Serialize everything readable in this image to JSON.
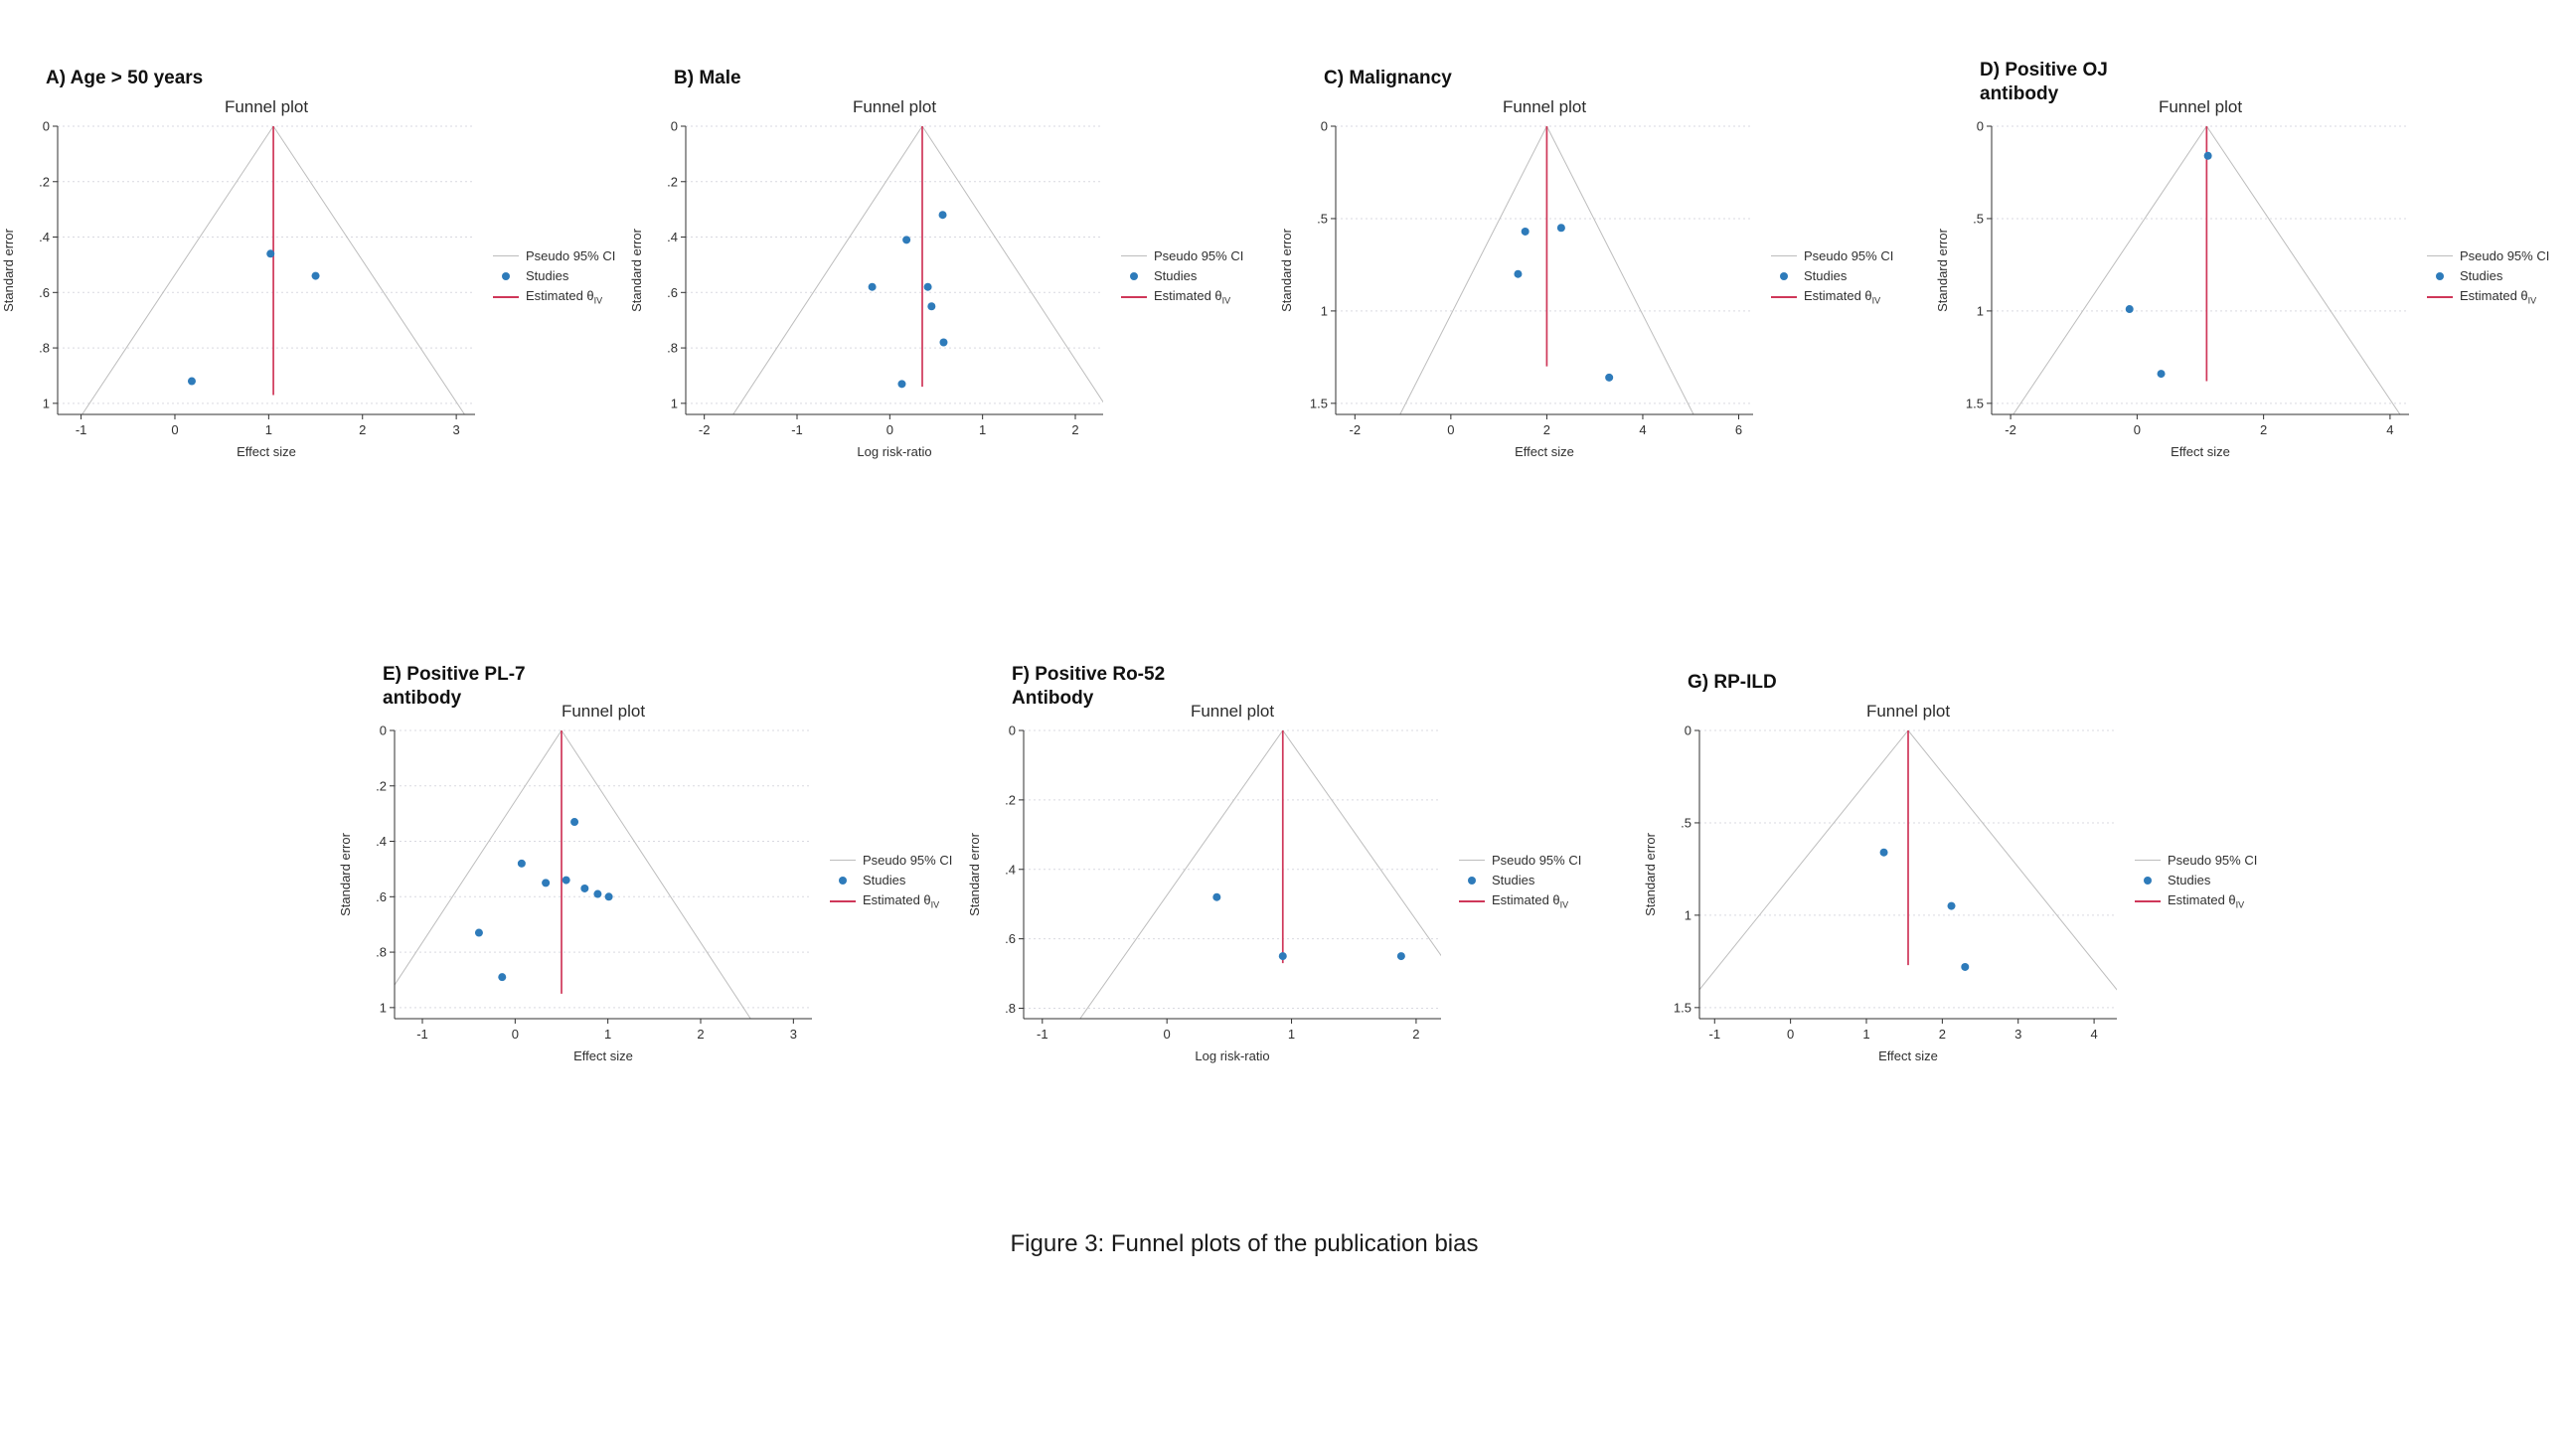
{
  "figure": {
    "caption": "Figure 3: Funnel plots of the publication bias"
  },
  "legend": {
    "pseudo_ci": "Pseudo 95% CI",
    "studies": "Studies",
    "estimated_prefix": "Estimated θ",
    "estimated_sub": "IV"
  },
  "colors": {
    "study_point": "#2e7bba",
    "estimate_line": "#cf3759",
    "ci_line": "#bdbdbd",
    "gridline": "#d9d9e0",
    "axis": "#303030",
    "text": "#303030",
    "title": "#2b2b2b"
  },
  "chart_data": [
    {
      "panel": "A",
      "panel_label": "A) Age > 50 years",
      "title": "Funnel plot",
      "type": "scatter",
      "subtype": "funnel",
      "xlabel": "Effect size",
      "ylabel": "Standard error",
      "xlim": [
        -1.25,
        3.2
      ],
      "xticks": [
        -1,
        0,
        1,
        2,
        3
      ],
      "ylim": [
        0,
        1.04
      ],
      "yticks": [
        0,
        0.2,
        0.4,
        0.6,
        0.8,
        1
      ],
      "ytick_labels": [
        "0",
        ".2",
        ".4",
        ".6",
        ".8",
        "1"
      ],
      "estimate": 1.05,
      "estimate_line_bottom": 0.97,
      "ci_slope": 1.96,
      "points": [
        [
          1.02,
          0.46
        ],
        [
          1.5,
          0.54
        ],
        [
          0.18,
          0.92
        ]
      ]
    },
    {
      "panel": "B",
      "panel_label": "B) Male",
      "title": "Funnel plot",
      "type": "scatter",
      "subtype": "funnel",
      "xlabel": "Log risk-ratio",
      "ylabel": "Standard error",
      "xlim": [
        -2.2,
        2.3
      ],
      "xticks": [
        -2,
        -1,
        0,
        1,
        2
      ],
      "ylim": [
        0,
        1.04
      ],
      "yticks": [
        0,
        0.2,
        0.4,
        0.6,
        0.8,
        1
      ],
      "ytick_labels": [
        "0",
        ".2",
        ".4",
        ".6",
        ".8",
        "1"
      ],
      "estimate": 0.35,
      "estimate_line_bottom": 0.94,
      "ci_slope": 1.96,
      "points": [
        [
          0.57,
          0.32
        ],
        [
          0.18,
          0.41
        ],
        [
          -0.19,
          0.58
        ],
        [
          0.41,
          0.58
        ],
        [
          0.45,
          0.65
        ],
        [
          0.58,
          0.78
        ],
        [
          0.13,
          0.93
        ]
      ]
    },
    {
      "panel": "C",
      "panel_label": "C) Malignancy",
      "title": "Funnel plot",
      "type": "scatter",
      "subtype": "funnel",
      "xlabel": "Effect size",
      "ylabel": "Standard error",
      "xlim": [
        -2.4,
        6.3
      ],
      "xticks": [
        -2,
        0,
        2,
        4,
        6
      ],
      "ylim": [
        0,
        1.56
      ],
      "yticks": [
        0,
        0.5,
        1,
        1.5
      ],
      "ytick_labels": [
        "0",
        ".5",
        "1",
        "1.5"
      ],
      "estimate": 2.0,
      "estimate_line_bottom": 1.3,
      "ci_slope": 1.96,
      "points": [
        [
          1.55,
          0.57
        ],
        [
          2.3,
          0.55
        ],
        [
          1.4,
          0.8
        ],
        [
          3.3,
          1.36
        ]
      ]
    },
    {
      "panel": "D",
      "panel_label": "D) Positive OJ\nantibody",
      "title": "Funnel plot",
      "type": "scatter",
      "subtype": "funnel",
      "xlabel": "Effect size",
      "ylabel": "Standard error",
      "xlim": [
        -2.3,
        4.3
      ],
      "xticks": [
        -2,
        0,
        2,
        4
      ],
      "ylim": [
        0,
        1.56
      ],
      "yticks": [
        0,
        0.5,
        1,
        1.5
      ],
      "ytick_labels": [
        "0",
        ".5",
        "1",
        "1.5"
      ],
      "estimate": 1.1,
      "estimate_line_bottom": 1.38,
      "ci_slope": 1.96,
      "points": [
        [
          1.12,
          0.16
        ],
        [
          -0.12,
          0.99
        ],
        [
          0.38,
          1.34
        ]
      ]
    },
    {
      "panel": "E",
      "panel_label": "E) Positive PL-7\nantibody",
      "title": "Funnel plot",
      "type": "scatter",
      "subtype": "funnel",
      "xlabel": "Effect size",
      "ylabel": "Standard error",
      "xlim": [
        -1.3,
        3.2
      ],
      "xticks": [
        -1,
        0,
        1,
        2,
        3
      ],
      "ylim": [
        0,
        1.04
      ],
      "yticks": [
        0,
        0.2,
        0.4,
        0.6,
        0.8,
        1
      ],
      "ytick_labels": [
        "0",
        ".2",
        ".4",
        ".6",
        ".8",
        "1"
      ],
      "estimate": 0.5,
      "estimate_line_bottom": 0.95,
      "ci_slope": 1.96,
      "points": [
        [
          0.64,
          0.33
        ],
        [
          0.07,
          0.48
        ],
        [
          0.33,
          0.55
        ],
        [
          0.55,
          0.54
        ],
        [
          0.75,
          0.57
        ],
        [
          0.89,
          0.59
        ],
        [
          1.01,
          0.6
        ],
        [
          -0.39,
          0.73
        ],
        [
          -0.14,
          0.89
        ]
      ]
    },
    {
      "panel": "F",
      "panel_label": "F) Positive Ro-52\nAntibody",
      "title": "Funnel plot",
      "type": "scatter",
      "subtype": "funnel",
      "xlabel": "Log risk-ratio",
      "ylabel": "Standard error",
      "xlim": [
        -1.15,
        2.2
      ],
      "xticks": [
        -1,
        0,
        1,
        2
      ],
      "ylim": [
        0,
        0.83
      ],
      "yticks": [
        0,
        0.2,
        0.4,
        0.6,
        0.8
      ],
      "ytick_labels": [
        "0",
        ".2",
        ".4",
        ".6",
        ".8"
      ],
      "estimate": 0.93,
      "estimate_line_bottom": 0.67,
      "ci_slope": 1.96,
      "points": [
        [
          0.4,
          0.48
        ],
        [
          0.93,
          0.65
        ],
        [
          1.88,
          0.65
        ]
      ]
    },
    {
      "panel": "G",
      "panel_label": "G) RP-ILD",
      "title": "Funnel plot",
      "type": "scatter",
      "subtype": "funnel",
      "xlabel": "Effect size",
      "ylabel": "Standard error",
      "xlim": [
        -1.2,
        4.3
      ],
      "xticks": [
        -1,
        0,
        1,
        2,
        3,
        4
      ],
      "ylim": [
        0,
        1.56
      ],
      "yticks": [
        0,
        0.5,
        1,
        1.5
      ],
      "ytick_labels": [
        "0",
        ".5",
        "1",
        "1.5"
      ],
      "estimate": 1.55,
      "estimate_line_bottom": 1.27,
      "ci_slope": 1.96,
      "points": [
        [
          1.23,
          0.66
        ],
        [
          2.12,
          0.95
        ],
        [
          2.3,
          1.28
        ]
      ]
    }
  ]
}
